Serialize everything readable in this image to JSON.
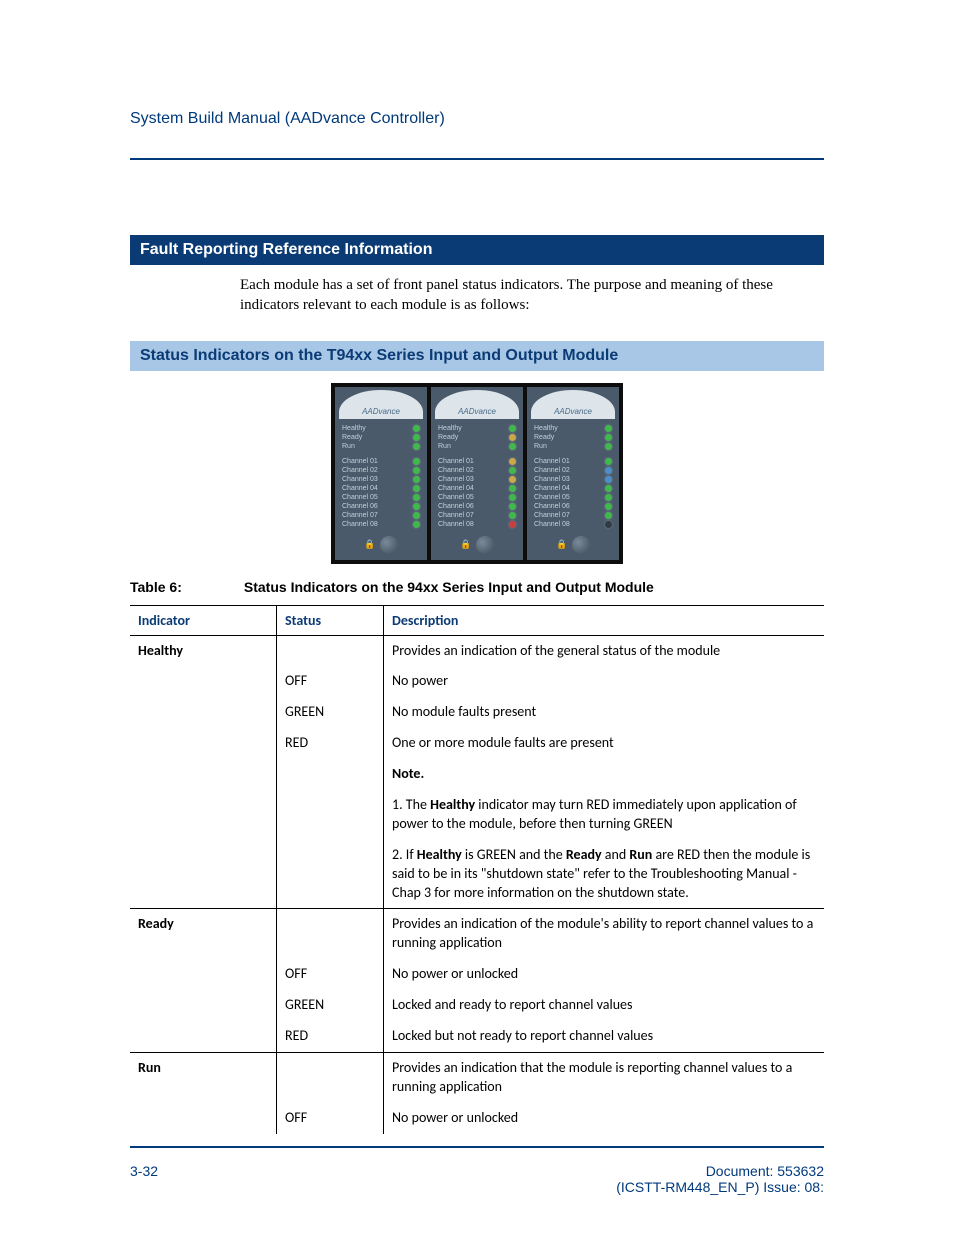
{
  "header": {
    "title": "System Build Manual  (AADvance Controller)"
  },
  "section1": {
    "heading": "Fault Reporting Reference Information",
    "body": "Each module has a set of front panel status indicators. The purpose and meaning of these indicators relevant to each module is as follows:"
  },
  "section2": {
    "heading": "Status Indicators on the T94xx Series Input and Output Module"
  },
  "photo": {
    "brand": "AADvance",
    "modules": [
      {
        "rows": [
          {
            "label": "Healthy",
            "led": "green"
          },
          {
            "label": "Ready",
            "led": "green"
          },
          {
            "label": "Run",
            "led": "green"
          },
          {
            "label": "Channel  01",
            "led": "green"
          },
          {
            "label": "Channel  02",
            "led": "green"
          },
          {
            "label": "Channel  03",
            "led": "green"
          },
          {
            "label": "Channel  04",
            "led": "green"
          },
          {
            "label": "Channel  05",
            "led": "green"
          },
          {
            "label": "Channel  06",
            "led": "green"
          },
          {
            "label": "Channel  07",
            "led": "green"
          },
          {
            "label": "Channel  08",
            "led": "green"
          }
        ]
      },
      {
        "rows": [
          {
            "label": "Healthy",
            "led": "green"
          },
          {
            "label": "Ready",
            "led": "amber"
          },
          {
            "label": "Run",
            "led": "green"
          },
          {
            "label": "Channel  01",
            "led": "amber"
          },
          {
            "label": "Channel  02",
            "led": "green"
          },
          {
            "label": "Channel  03",
            "led": "amber"
          },
          {
            "label": "Channel  04",
            "led": "green"
          },
          {
            "label": "Channel  05",
            "led": "green"
          },
          {
            "label": "Channel  06",
            "led": "green"
          },
          {
            "label": "Channel  07",
            "led": "green"
          },
          {
            "label": "Channel  08",
            "led": "red"
          }
        ]
      },
      {
        "rows": [
          {
            "label": "Healthy",
            "led": "green"
          },
          {
            "label": "Ready",
            "led": "green"
          },
          {
            "label": "Run",
            "led": "green"
          },
          {
            "label": "Channel  01",
            "led": "green"
          },
          {
            "label": "Channel  02",
            "led": "blue"
          },
          {
            "label": "Channel  03",
            "led": "blue"
          },
          {
            "label": "Channel  04",
            "led": "green"
          },
          {
            "label": "Channel  05",
            "led": "green"
          },
          {
            "label": "Channel  06",
            "led": "green"
          },
          {
            "label": "Channel  07",
            "led": "green"
          },
          {
            "label": "Channel  08",
            "led": "off"
          }
        ]
      }
    ]
  },
  "table": {
    "caption_num": "Table 6:",
    "caption_title": "Status Indicators on the 94xx Series Input and Output Module",
    "columns": [
      "Indicator",
      "Status",
      "Description"
    ],
    "rows": [
      {
        "indicator": "Healthy",
        "status": "",
        "desc": "Provides an indication of the general status of the module",
        "section": true
      },
      {
        "indicator": "",
        "status": "OFF",
        "desc": "No power"
      },
      {
        "indicator": "",
        "status": "GREEN",
        "desc": "No module faults present"
      },
      {
        "indicator": "",
        "status": "RED",
        "desc": "One or more module faults are present"
      },
      {
        "indicator": "",
        "status": "",
        "desc_html": "<span class='b'>Note.</span>"
      },
      {
        "indicator": "",
        "status": "",
        "desc_html": "1. The <span class='b'>Healthy</span> indicator may turn RED immediately upon application of power to the module, before then turning GREEN"
      },
      {
        "indicator": "",
        "status": "",
        "desc_html": " 2. If <span class='b'>Healthy</span> is GREEN and the <span class='b'>Ready</span> and <span class='b'>Run</span> are RED then the module is said to be in its \"shutdown state\" refer to the Troubleshooting Manual  - Chap 3 for more information on the shutdown state."
      },
      {
        "indicator": "Ready",
        "status": "",
        "desc": "Provides an indication of the module's ability to report channel values to a running application",
        "section": true
      },
      {
        "indicator": "",
        "status": "OFF",
        "desc": "No power or unlocked"
      },
      {
        "indicator": "",
        "status": "GREEN",
        "desc": "Locked and ready to report channel values"
      },
      {
        "indicator": "",
        "status": "RED",
        "desc": "Locked but not ready to report channel values"
      },
      {
        "indicator": "Run",
        "status": "",
        "desc": "Provides an indication that the module is reporting channel values to a running application",
        "section": true
      },
      {
        "indicator": "",
        "status": "OFF",
        "desc": "No power or unlocked"
      }
    ]
  },
  "footer": {
    "page": "3-32",
    "doc_line1": "Document: 553632",
    "doc_line2": "(ICSTT-RM448_EN_P) Issue: 08:"
  },
  "colors": {
    "header_blue": "#003a7a",
    "dark_section": "#0b3b75",
    "light_section": "#a8c7e6"
  }
}
